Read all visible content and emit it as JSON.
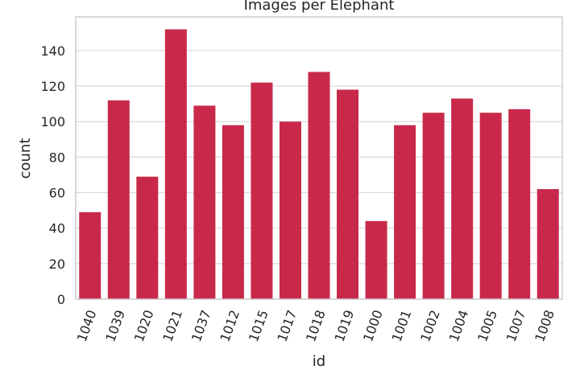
{
  "chart_data": {
    "type": "bar",
    "title": "Images per Elephant",
    "xlabel": "id",
    "ylabel": "count",
    "categories": [
      "1040",
      "1039",
      "1020",
      "1021",
      "1037",
      "1012",
      "1015",
      "1017",
      "1018",
      "1019",
      "1000",
      "1001",
      "1002",
      "1004",
      "1005",
      "1007",
      "1008"
    ],
    "values": [
      49,
      112,
      69,
      152,
      109,
      98,
      122,
      100,
      128,
      118,
      44,
      98,
      105,
      113,
      105,
      107,
      62
    ],
    "ylim": [
      0,
      159
    ],
    "yticks": [
      0,
      20,
      40,
      60,
      80,
      100,
      120,
      140
    ],
    "grid": true,
    "bar_color": "#c8294b",
    "grid_color": "#d9d9d9",
    "frame_color": "#cccccc"
  }
}
